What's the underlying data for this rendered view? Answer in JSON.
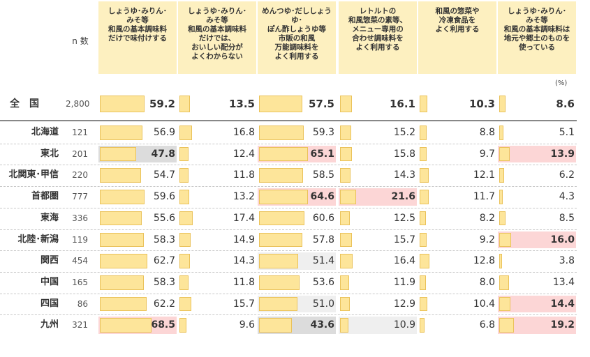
{
  "n_label": "n 数",
  "unit": "(%)",
  "colors": {
    "header_bg": "#fdf0c0",
    "bar": "#fde59a",
    "bar_border": "#eac25a",
    "high": "#fcd6d6",
    "low": "#dcdcdc",
    "mid_low": "#efefef"
  },
  "chart_data": {
    "type": "table",
    "columns": [
      "しょうゆ･みりん･\nみそ等\n和風の基本調味料\nだけで味付けする",
      "しょうゆ･みりん･\nみそ等\n和風の基本調味料\nだけでは、\nおいしい配分が\nよくわからない",
      "めんつゆ･だししょうゆ･\nぽん酢しょうゆ等\n市販の和風\n万能調味料を\nよく利用する",
      "レトルトの\n和風惣菜の素等、\nメニュー専用の\n合わせ調味料を\nよく利用する",
      "和風の惣菜や\n冷凍食品を\nよく利用する",
      "しょうゆ･みりん･\nみそ等\n和風の基本調味料は\n地元や郷土のものを\n使っている"
    ],
    "total": {
      "label": "全　国",
      "n": "2,800",
      "values": [
        59.2,
        13.5,
        57.5,
        16.1,
        10.3,
        8.6
      ]
    },
    "rows": [
      {
        "label": "北海道",
        "n": "121",
        "values": [
          56.9,
          16.8,
          59.3,
          15.2,
          8.8,
          5.1
        ],
        "hl": [
          "",
          "",
          "",
          "",
          "",
          ""
        ]
      },
      {
        "label": "東北",
        "n": "201",
        "values": [
          47.8,
          12.4,
          65.1,
          15.8,
          9.7,
          13.9
        ],
        "hl": [
          "low",
          "",
          "high",
          "",
          "",
          "high"
        ]
      },
      {
        "label": "北関東･甲信",
        "n": "220",
        "values": [
          54.7,
          11.8,
          58.5,
          14.3,
          12.1,
          6.2
        ],
        "hl": [
          "",
          "",
          "",
          "",
          "",
          ""
        ]
      },
      {
        "label": "首都圏",
        "n": "777",
        "values": [
          59.6,
          13.2,
          64.6,
          21.6,
          11.7,
          4.3
        ],
        "hl": [
          "",
          "",
          "high",
          "high",
          "",
          ""
        ]
      },
      {
        "label": "東海",
        "n": "336",
        "values": [
          55.6,
          17.4,
          60.6,
          12.5,
          8.2,
          8.5
        ],
        "hl": [
          "",
          "",
          "",
          "",
          "",
          ""
        ]
      },
      {
        "label": "北陸･新潟",
        "n": "119",
        "values": [
          58.3,
          14.9,
          57.8,
          15.7,
          9.2,
          16.0
        ],
        "hl": [
          "",
          "",
          "",
          "",
          "",
          "high"
        ]
      },
      {
        "label": "関西",
        "n": "454",
        "values": [
          62.7,
          14.3,
          51.4,
          16.4,
          12.8,
          3.8
        ],
        "hl": [
          "",
          "",
          "midlow",
          "",
          "",
          ""
        ]
      },
      {
        "label": "中国",
        "n": "165",
        "values": [
          58.3,
          11.8,
          53.6,
          11.9,
          8.0,
          13.4
        ],
        "hl": [
          "",
          "",
          "",
          "",
          "",
          ""
        ]
      },
      {
        "label": "四国",
        "n": "86",
        "values": [
          62.2,
          15.7,
          51.0,
          12.9,
          10.4,
          14.4
        ],
        "hl": [
          "",
          "",
          "midlow",
          "",
          "",
          "high"
        ]
      },
      {
        "label": "九州",
        "n": "321",
        "values": [
          68.5,
          9.6,
          43.6,
          10.9,
          6.8,
          19.2
        ],
        "hl": [
          "high",
          "",
          "low",
          "midlow",
          "",
          "high"
        ]
      }
    ]
  }
}
